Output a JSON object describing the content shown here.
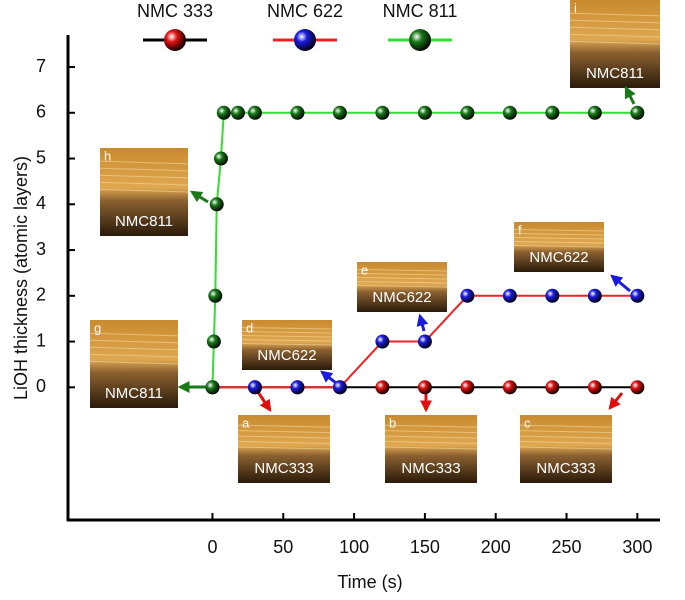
{
  "chart_data": {
    "type": "line",
    "xlabel": "Time (s)",
    "ylabel": "LiOH thickness (atomic layers)",
    "xlim": [
      -102,
      316
    ],
    "ylim": [
      -2.9,
      7.7
    ],
    "xticks": [
      0,
      50,
      100,
      150,
      200,
      250,
      300
    ],
    "yticks": [
      0,
      1,
      2,
      3,
      4,
      5,
      6,
      7
    ],
    "series": [
      {
        "name": "NMC 333",
        "line_color": "#000000",
        "marker_color": "#e01010",
        "x": [
          0,
          30,
          60,
          90,
          120,
          150,
          180,
          210,
          240,
          270,
          300
        ],
        "values": [
          0,
          0,
          0,
          0,
          0,
          0,
          0,
          0,
          0,
          0,
          0
        ]
      },
      {
        "name": "NMC 622",
        "line_color": "#ee2222",
        "marker_color": "#1a1ae0",
        "x": [
          0,
          30,
          60,
          90,
          120,
          150,
          180,
          210,
          240,
          270,
          300
        ],
        "values": [
          0,
          0,
          0,
          0,
          1,
          1,
          2,
          2,
          2,
          2,
          2
        ]
      },
      {
        "name": "NMC 811",
        "line_color": "#33dd33",
        "marker_color": "#1a7a1a",
        "x": [
          0,
          1,
          2,
          3,
          6,
          8,
          18,
          30,
          60,
          90,
          120,
          150,
          180,
          210,
          240,
          270,
          300
        ],
        "values": [
          0,
          1,
          2,
          4,
          5,
          6,
          6,
          6,
          6,
          6,
          6,
          6,
          6,
          6,
          6,
          6,
          6
        ]
      }
    ],
    "annotations": [
      {
        "letter": "a",
        "label": "NMC333"
      },
      {
        "letter": "b",
        "label": "NMC333"
      },
      {
        "letter": "c",
        "label": "NMC333"
      },
      {
        "letter": "d",
        "label": "NMC622"
      },
      {
        "letter": "e",
        "label": "NMC622"
      },
      {
        "letter": "f",
        "label": "NMC622"
      },
      {
        "letter": "g",
        "label": "NMC811"
      },
      {
        "letter": "h",
        "label": "NMC811"
      },
      {
        "letter": "i",
        "label": "NMC811"
      }
    ]
  }
}
